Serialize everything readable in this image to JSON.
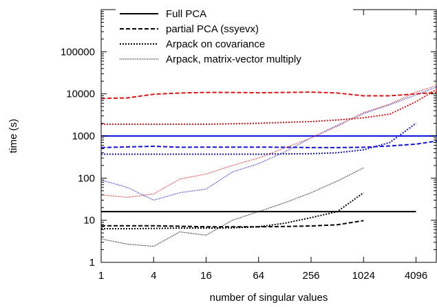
{
  "chart_data": {
    "type": "line",
    "xlabel": "number of singular values",
    "ylabel": "time (s)",
    "x_scale": "log2",
    "y_scale": "log10",
    "xlim": [
      1,
      7000
    ],
    "ylim": [
      1,
      1000000
    ],
    "x_ticks": [
      1,
      4,
      16,
      64,
      256,
      1024,
      4096
    ],
    "x_tick_labels": [
      "1",
      "4",
      "16",
      "64",
      "256",
      "1024",
      "4096"
    ],
    "y_ticks": [
      1,
      10,
      100,
      1000,
      10000,
      100000
    ],
    "y_tick_labels": [
      "1",
      "10",
      "100",
      "1000",
      "10000",
      "100000"
    ],
    "grid": false,
    "legend_position": "top-left",
    "legend": [
      {
        "label": "Full PCA",
        "style": "solid"
      },
      {
        "label": "partial PCA (ssyevx)",
        "style": "dashed"
      },
      {
        "label": "Arpack on covariance",
        "style": "dotted"
      },
      {
        "label": "Arpack, matrix-vector multiply",
        "style": "finedotted"
      }
    ],
    "series": [
      {
        "color": "#000000",
        "style": "solid",
        "x": [
          1,
          4096
        ],
        "y": [
          16,
          16
        ]
      },
      {
        "color": "#000000",
        "style": "dashed",
        "x": [
          1,
          2,
          4,
          8,
          16,
          32,
          64,
          128,
          256,
          512,
          1024
        ],
        "y": [
          7.4,
          7.4,
          7.4,
          7.2,
          7.0,
          7.0,
          7.0,
          7.1,
          7.3,
          7.8,
          9.8
        ]
      },
      {
        "color": "#000000",
        "style": "dotted",
        "x": [
          1,
          2,
          4,
          8,
          16,
          32,
          64,
          128,
          256,
          512,
          1024
        ],
        "y": [
          6.3,
          6.3,
          6.4,
          6.5,
          6.5,
          6.6,
          7.0,
          8.5,
          11.5,
          16,
          45
        ]
      },
      {
        "color": "#000000",
        "style": "finedotted",
        "x": [
          1,
          2,
          4,
          8,
          16,
          32,
          64,
          128,
          256,
          512,
          1024
        ],
        "y": [
          3.6,
          2.7,
          2.4,
          5.3,
          4.4,
          10,
          16,
          26,
          45,
          85,
          175
        ]
      },
      {
        "color": "#1010e0",
        "style": "solid",
        "x": [
          1,
          8000
        ],
        "y": [
          1000,
          1000
        ]
      },
      {
        "color": "#1010e0",
        "style": "dashed",
        "x": [
          1,
          2,
          4,
          8,
          16,
          32,
          64,
          128,
          256,
          512,
          1024,
          2048,
          4096,
          8000
        ],
        "y": [
          530,
          550,
          570,
          540,
          545,
          545,
          545,
          540,
          530,
          530,
          540,
          580,
          640,
          790
        ]
      },
      {
        "color": "#1010e0",
        "style": "dotted",
        "x": [
          1,
          2,
          4,
          8,
          16,
          32,
          64,
          128,
          256,
          512,
          1024,
          2048,
          4096
        ],
        "y": [
          370,
          370,
          370,
          370,
          370,
          370,
          370,
          375,
          380,
          400,
          470,
          700,
          2000
        ]
      },
      {
        "color": "#1010e0",
        "style": "finedotted",
        "x": [
          1,
          2,
          4,
          8,
          16,
          32,
          64,
          128,
          256,
          512,
          1024,
          2048,
          4096,
          8000
        ],
        "y": [
          90,
          60,
          30,
          45,
          55,
          140,
          220,
          420,
          900,
          1800,
          3400,
          5500,
          9500,
          16000
        ]
      },
      {
        "color": "#e01010",
        "style": "dashed",
        "x": [
          1,
          2,
          4,
          8,
          16,
          32,
          64,
          128,
          256,
          512,
          1024,
          2048,
          4096,
          8000
        ],
        "y": [
          7800,
          8000,
          9800,
          10500,
          10800,
          10800,
          10600,
          10800,
          11000,
          10500,
          9000,
          9000,
          10000,
          11000
        ]
      },
      {
        "color": "#e01010",
        "style": "dotted",
        "x": [
          1,
          2,
          4,
          8,
          16,
          32,
          64,
          128,
          256,
          512,
          1024,
          2048,
          4096,
          8000
        ],
        "y": [
          1900,
          1900,
          1900,
          1900,
          1900,
          1950,
          2000,
          2100,
          2200,
          2400,
          2700,
          3300,
          6500,
          15000
        ]
      },
      {
        "color": "#e01010",
        "style": "finedotted",
        "x": [
          1,
          2,
          4,
          8,
          16,
          32,
          64,
          128,
          256,
          512,
          1024,
          2048,
          4096,
          8000
        ],
        "y": [
          40,
          35,
          42,
          95,
          125,
          200,
          300,
          520,
          900,
          1700,
          3600,
          5700,
          11000,
          17000
        ]
      }
    ]
  }
}
